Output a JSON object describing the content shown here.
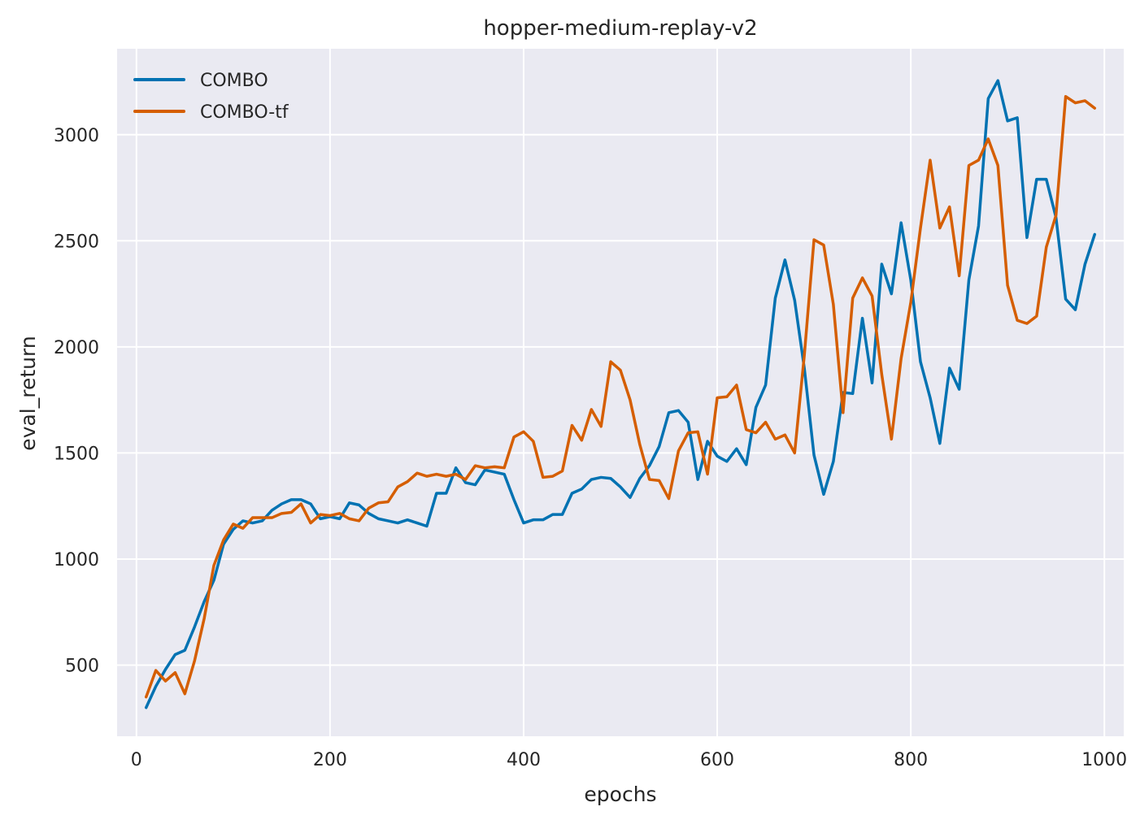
{
  "chart_data": {
    "type": "line",
    "title": "hopper-medium-replay-v2",
    "xlabel": "epochs",
    "ylabel": "eval_return",
    "xlim": [
      -20,
      1020
    ],
    "ylim": [
      165,
      3405
    ],
    "xticks": [
      0,
      200,
      400,
      600,
      800,
      1000
    ],
    "yticks": [
      500,
      1000,
      1500,
      2000,
      2500,
      3000
    ],
    "grid": true,
    "legend_position": "top-left",
    "background_color": "#eaeaf2",
    "x": [
      10,
      20,
      30,
      40,
      50,
      60,
      70,
      80,
      90,
      100,
      110,
      120,
      130,
      140,
      150,
      160,
      170,
      180,
      190,
      200,
      210,
      220,
      230,
      240,
      250,
      260,
      270,
      280,
      290,
      300,
      310,
      320,
      330,
      340,
      350,
      360,
      370,
      380,
      390,
      400,
      410,
      420,
      430,
      440,
      450,
      460,
      470,
      480,
      490,
      500,
      510,
      520,
      530,
      540,
      550,
      560,
      570,
      580,
      590,
      600,
      610,
      620,
      630,
      640,
      650,
      660,
      670,
      680,
      690,
      700,
      710,
      720,
      730,
      740,
      750,
      760,
      770,
      780,
      790,
      800,
      810,
      820,
      830,
      840,
      850,
      860,
      870,
      880,
      890,
      900,
      910,
      920,
      930,
      940,
      950,
      960,
      970,
      980,
      990
    ],
    "series": [
      {
        "name": "COMBO",
        "color": "#0072b2",
        "values": [
          300,
          400,
          480,
          550,
          570,
          680,
          800,
          900,
          1070,
          1140,
          1180,
          1170,
          1180,
          1230,
          1260,
          1280,
          1280,
          1260,
          1190,
          1200,
          1190,
          1265,
          1255,
          1215,
          1190,
          1180,
          1170,
          1185,
          1170,
          1155,
          1310,
          1310,
          1430,
          1360,
          1350,
          1420,
          1410,
          1400,
          1280,
          1170,
          1185,
          1185,
          1210,
          1210,
          1310,
          1330,
          1375,
          1385,
          1380,
          1340,
          1290,
          1380,
          1440,
          1530,
          1690,
          1700,
          1645,
          1375,
          1555,
          1485,
          1460,
          1520,
          1445,
          1715,
          1820,
          2230,
          2410,
          2220,
          1900,
          1490,
          1305,
          1460,
          1785,
          1780,
          2135,
          1830,
          2390,
          2250,
          2585,
          2315,
          1930,
          1760,
          1545,
          1900,
          1800,
          2315,
          2570,
          3170,
          3255,
          3065,
          3080,
          2515,
          2790,
          2790,
          2610,
          2225,
          2175,
          2390,
          2530
        ]
      },
      {
        "name": "COMBO-tf",
        "color": "#d55e00",
        "values": [
          350,
          475,
          425,
          465,
          365,
          520,
          720,
          970,
          1090,
          1165,
          1145,
          1195,
          1195,
          1195,
          1215,
          1220,
          1260,
          1170,
          1210,
          1205,
          1215,
          1190,
          1180,
          1240,
          1265,
          1270,
          1340,
          1365,
          1405,
          1390,
          1400,
          1390,
          1400,
          1375,
          1440,
          1430,
          1435,
          1430,
          1575,
          1600,
          1555,
          1385,
          1390,
          1415,
          1630,
          1560,
          1705,
          1625,
          1930,
          1890,
          1750,
          1540,
          1375,
          1370,
          1285,
          1510,
          1595,
          1600,
          1400,
          1760,
          1765,
          1820,
          1610,
          1595,
          1645,
          1565,
          1585,
          1500,
          1960,
          2505,
          2480,
          2200,
          1690,
          2230,
          2325,
          2240,
          1870,
          1565,
          1945,
          2210,
          2560,
          2880,
          2560,
          2660,
          2335,
          2855,
          2880,
          2980,
          2855,
          2290,
          2125,
          2110,
          2145,
          2470,
          2620,
          3180,
          3150,
          3160,
          3125
        ]
      }
    ]
  }
}
